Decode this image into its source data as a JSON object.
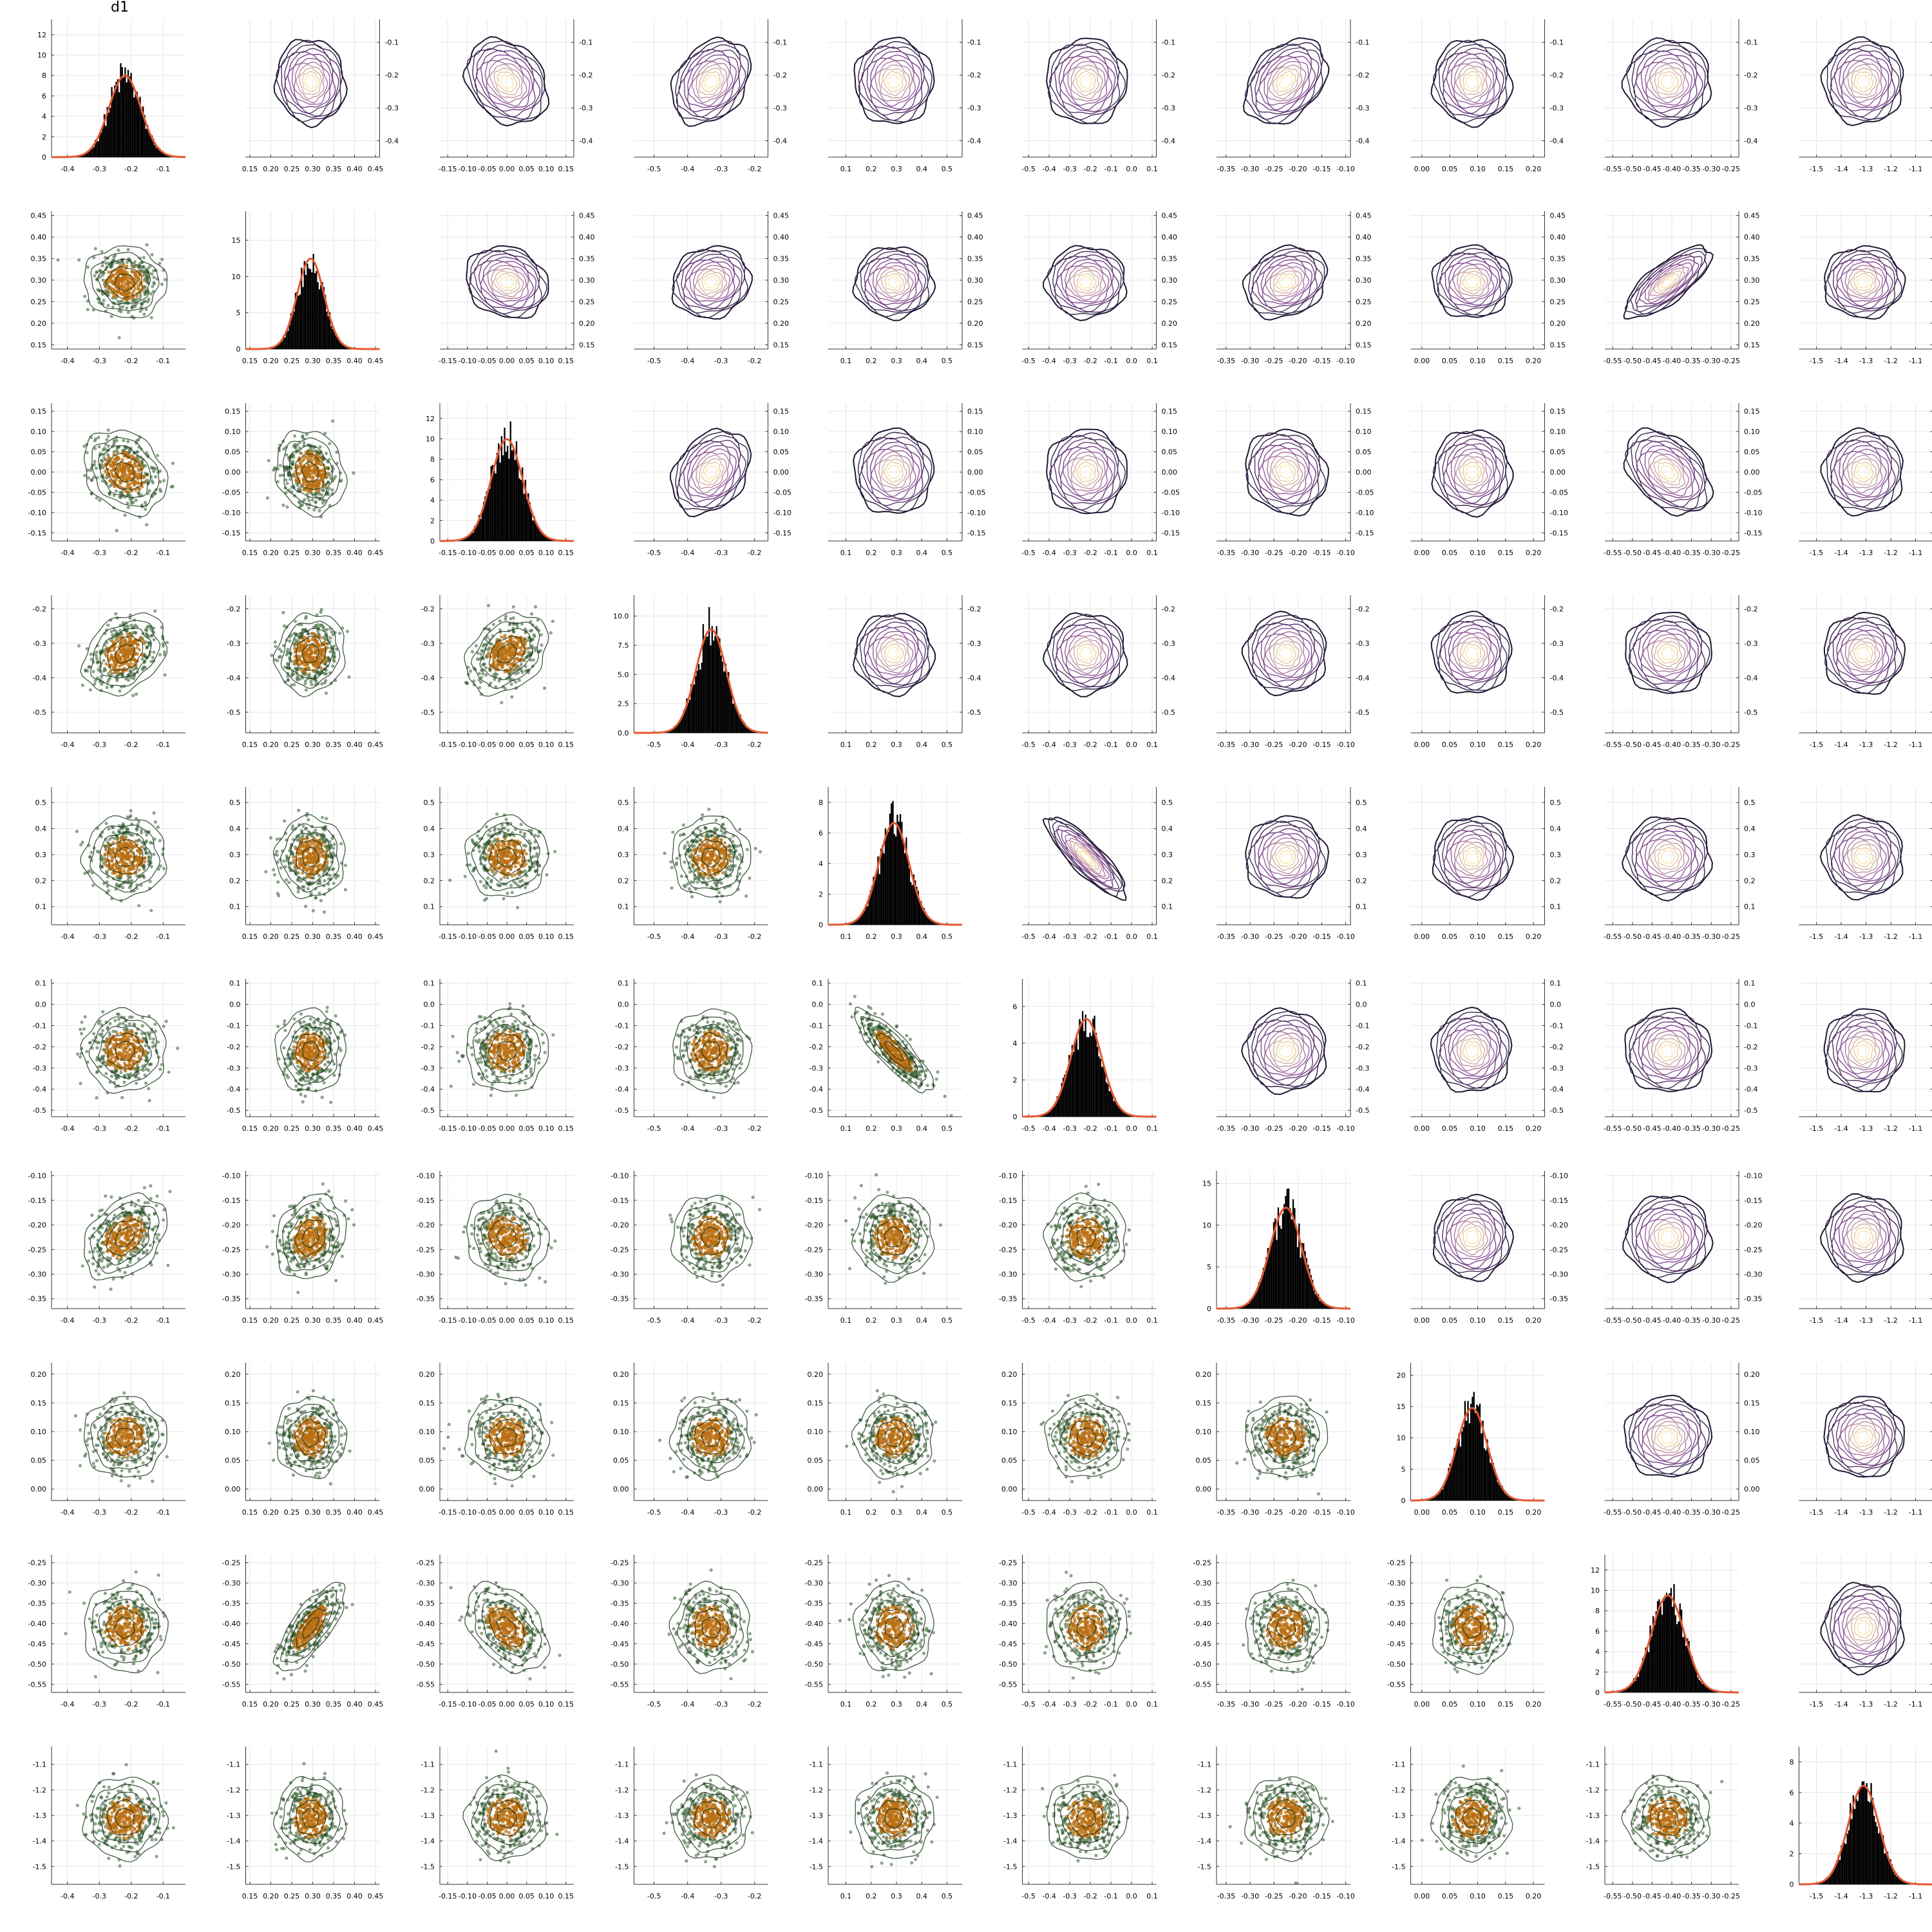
{
  "chart_data": {
    "type": "corner-plot",
    "title": "d1",
    "variables": [
      {
        "mean": -0.22,
        "sd": 0.05,
        "ticks": [
          "-0.4",
          "-0.3",
          "-0.2",
          "-0.1"
        ],
        "tick_values": [
          -0.4,
          -0.3,
          -0.2,
          -0.1
        ],
        "range": [
          -0.45,
          -0.03
        ],
        "density_ticks": [
          "0",
          "2",
          "4",
          "6",
          "8",
          "10",
          "12"
        ],
        "density_tick_values": [
          0,
          2,
          4,
          6,
          8,
          10,
          12
        ],
        "density_max": 13.5
      },
      {
        "mean": 0.295,
        "sd": 0.032,
        "ticks": [
          "0.15",
          "0.20",
          "0.25",
          "0.30",
          "0.35",
          "0.40",
          "0.45"
        ],
        "tick_values": [
          0.15,
          0.2,
          0.25,
          0.3,
          0.35,
          0.4,
          0.45
        ],
        "range": [
          0.14,
          0.46
        ],
        "density_ticks": [
          "0",
          "5",
          "10",
          "15"
        ],
        "density_tick_values": [
          0,
          5,
          10,
          15
        ],
        "density_max": 19
      },
      {
        "mean": 0.0,
        "sd": 0.04,
        "ticks": [
          "-0.15",
          "-0.10",
          "-0.05",
          "0.00",
          "0.05",
          "0.10",
          "0.15"
        ],
        "tick_values": [
          -0.15,
          -0.1,
          -0.05,
          0.0,
          0.05,
          0.1,
          0.15
        ],
        "range": [
          -0.17,
          0.17
        ],
        "density_ticks": [
          "0",
          "2",
          "4",
          "6",
          "8",
          "10",
          "12"
        ],
        "density_tick_values": [
          0,
          2,
          4,
          6,
          8,
          10,
          12
        ],
        "density_max": 13.5
      },
      {
        "mean": -0.33,
        "sd": 0.045,
        "ticks": [
          "-0.5",
          "-0.4",
          "-0.3",
          "-0.2"
        ],
        "tick_values": [
          -0.5,
          -0.4,
          -0.3,
          -0.2
        ],
        "range": [
          -0.56,
          -0.16
        ],
        "density_ticks": [
          "0.0",
          "2.5",
          "5.0",
          "7.5",
          "10.0"
        ],
        "density_tick_values": [
          0,
          2.5,
          5,
          7.5,
          10
        ],
        "density_max": 11.8
      },
      {
        "mean": 0.29,
        "sd": 0.06,
        "ticks": [
          "0.1",
          "0.2",
          "0.3",
          "0.4",
          "0.5"
        ],
        "tick_values": [
          0.1,
          0.2,
          0.3,
          0.4,
          0.5
        ],
        "range": [
          0.03,
          0.56
        ],
        "density_ticks": [
          "0",
          "2",
          "4",
          "6",
          "8"
        ],
        "density_tick_values": [
          0,
          2,
          4,
          6,
          8
        ],
        "density_max": 9
      },
      {
        "mean": -0.22,
        "sd": 0.075,
        "ticks": [
          "-0.5",
          "-0.4",
          "-0.3",
          "-0.2",
          "-0.1",
          "0.0",
          "0.1"
        ],
        "tick_values": [
          -0.5,
          -0.4,
          -0.3,
          -0.2,
          -0.1,
          0.0,
          0.1
        ],
        "range": [
          -0.53,
          0.12
        ],
        "density_ticks": [
          "0",
          "2",
          "4",
          "6"
        ],
        "density_tick_values": [
          0,
          2,
          4,
          6
        ],
        "density_max": 7.5
      },
      {
        "mean": -0.225,
        "sd": 0.033,
        "ticks": [
          "-0.35",
          "-0.30",
          "-0.25",
          "-0.20",
          "-0.15",
          "-0.10"
        ],
        "tick_values": [
          -0.35,
          -0.3,
          -0.25,
          -0.2,
          -0.15,
          -0.1
        ],
        "range": [
          -0.37,
          -0.09
        ],
        "density_ticks": [
          "0",
          "5",
          "10",
          "15"
        ],
        "density_tick_values": [
          0,
          5,
          10,
          15
        ],
        "density_max": 16.5
      },
      {
        "mean": 0.09,
        "sd": 0.027,
        "ticks": [
          "0.00",
          "0.05",
          "0.10",
          "0.15",
          "0.20"
        ],
        "tick_values": [
          0.0,
          0.05,
          0.1,
          0.15,
          0.2
        ],
        "range": [
          -0.02,
          0.22
        ],
        "density_ticks": [
          "0",
          "5",
          "10",
          "15",
          "20"
        ],
        "density_tick_values": [
          0,
          5,
          10,
          15,
          20
        ],
        "density_max": 22
      },
      {
        "mean": -0.41,
        "sd": 0.042,
        "ticks": [
          "-0.55",
          "-0.50",
          "-0.45",
          "-0.40",
          "-0.35",
          "-0.30",
          "-0.25"
        ],
        "tick_values": [
          -0.55,
          -0.5,
          -0.45,
          -0.4,
          -0.35,
          -0.3,
          -0.25
        ],
        "range": [
          -0.57,
          -0.23
        ],
        "density_ticks": [
          "0",
          "2",
          "4",
          "6",
          "8",
          "10",
          "12"
        ],
        "density_tick_values": [
          0,
          2,
          4,
          6,
          8,
          10,
          12
        ],
        "density_max": 13.5
      },
      {
        "mean": -1.31,
        "sd": 0.062,
        "ticks": [
          "-1.5",
          "-1.4",
          "-1.3",
          "-1.2",
          "-1.1"
        ],
        "tick_values": [
          -1.5,
          -1.4,
          -1.3,
          -1.2,
          -1.1
        ],
        "range": [
          -1.57,
          -1.03
        ],
        "density_ticks": [
          "0",
          "2",
          "4",
          "6",
          "8"
        ],
        "density_tick_values": [
          0,
          2,
          4,
          6,
          8
        ],
        "density_max": 9
      }
    ],
    "correlations": [
      {
        "i": 1,
        "j": 0,
        "rho": -0.05
      },
      {
        "i": 2,
        "j": 0,
        "rho": -0.25
      },
      {
        "i": 3,
        "j": 0,
        "rho": 0.3
      },
      {
        "i": 4,
        "j": 0,
        "rho": 0.0
      },
      {
        "i": 5,
        "j": 0,
        "rho": 0.0
      },
      {
        "i": 6,
        "j": 0,
        "rho": 0.35
      },
      {
        "i": 7,
        "j": 0,
        "rho": 0.0
      },
      {
        "i": 8,
        "j": 0,
        "rho": 0.0
      },
      {
        "i": 9,
        "j": 0,
        "rho": 0.0
      },
      {
        "i": 2,
        "j": 1,
        "rho": -0.15
      },
      {
        "i": 3,
        "j": 1,
        "rho": 0.1
      },
      {
        "i": 4,
        "j": 1,
        "rho": 0.0
      },
      {
        "i": 5,
        "j": 1,
        "rho": 0.0
      },
      {
        "i": 6,
        "j": 1,
        "rho": 0.2
      },
      {
        "i": 7,
        "j": 1,
        "rho": 0.0
      },
      {
        "i": 8,
        "j": 1,
        "rho": 0.75
      },
      {
        "i": 9,
        "j": 1,
        "rho": 0.0
      },
      {
        "i": 3,
        "j": 2,
        "rho": 0.3
      },
      {
        "i": 4,
        "j": 2,
        "rho": 0.0
      },
      {
        "i": 5,
        "j": 2,
        "rho": 0.0
      },
      {
        "i": 6,
        "j": 2,
        "rho": -0.1
      },
      {
        "i": 7,
        "j": 2,
        "rho": 0.0
      },
      {
        "i": 8,
        "j": 2,
        "rho": -0.4
      },
      {
        "i": 9,
        "j": 2,
        "rho": 0.0
      },
      {
        "i": 4,
        "j": 3,
        "rho": 0.0
      },
      {
        "i": 5,
        "j": 3,
        "rho": 0.0
      },
      {
        "i": 6,
        "j": 3,
        "rho": 0.0
      },
      {
        "i": 7,
        "j": 3,
        "rho": 0.0
      },
      {
        "i": 8,
        "j": 3,
        "rho": 0.0
      },
      {
        "i": 9,
        "j": 3,
        "rho": 0.0
      },
      {
        "i": 5,
        "j": 4,
        "rho": -0.85
      },
      {
        "i": 6,
        "j": 4,
        "rho": 0.0
      },
      {
        "i": 7,
        "j": 4,
        "rho": 0.0
      },
      {
        "i": 8,
        "j": 4,
        "rho": 0.0
      },
      {
        "i": 9,
        "j": 4,
        "rho": 0.0
      },
      {
        "i": 6,
        "j": 5,
        "rho": 0.0
      },
      {
        "i": 7,
        "j": 5,
        "rho": 0.0
      },
      {
        "i": 8,
        "j": 5,
        "rho": 0.0
      },
      {
        "i": 9,
        "j": 5,
        "rho": 0.0
      },
      {
        "i": 7,
        "j": 6,
        "rho": 0.0
      },
      {
        "i": 8,
        "j": 6,
        "rho": 0.0
      },
      {
        "i": 9,
        "j": 6,
        "rho": 0.0
      },
      {
        "i": 8,
        "j": 7,
        "rho": 0.0
      },
      {
        "i": 9,
        "j": 7,
        "rho": 0.0
      },
      {
        "i": 9,
        "j": 8,
        "rho": 0.0
      }
    ],
    "diagonal": "histogram with density curve",
    "lower": "scatter with contours",
    "upper": "filled-style density contours",
    "grid": true
  },
  "colors": {
    "histogram": "#000000",
    "density_curve": "#e4572e",
    "scatter_outer": "#2f5a2b",
    "scatter_inner": "#b96f12",
    "contour_dark": "#1d1933",
    "contour_mid": "#8b4f9c",
    "contour_light": "#fde7a8",
    "grid": "#e6e6e6",
    "axis": "#333333"
  }
}
